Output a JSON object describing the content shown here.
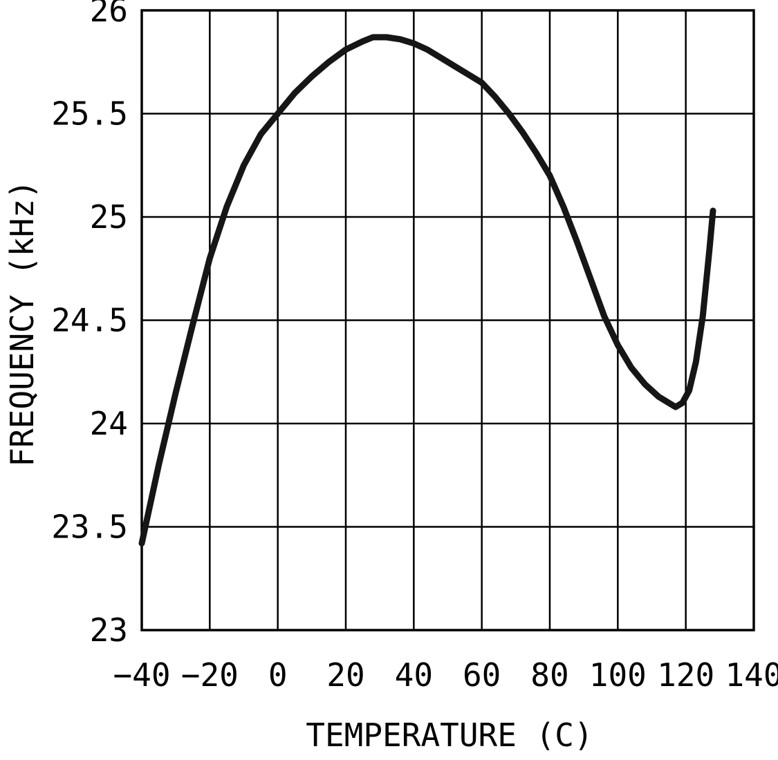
{
  "chart_data": {
    "type": "line",
    "title": "",
    "xlabel": "TEMPERATURE (C)",
    "ylabel": "FREQUENCY (kHz)",
    "xlim": [
      -40,
      140
    ],
    "ylim": [
      23,
      26
    ],
    "xticks": [
      -40,
      -20,
      0,
      20,
      40,
      60,
      80,
      100,
      120,
      140
    ],
    "xtick_labels": [
      "−40",
      "−20",
      "0",
      "20",
      "40",
      "60",
      "80",
      "100",
      "120",
      "140"
    ],
    "yticks": [
      23,
      23.5,
      24,
      24.5,
      25,
      25.5,
      26
    ],
    "ytick_labels": [
      "23",
      "23.5",
      "24",
      "24.5",
      "25",
      "25.5",
      "26"
    ],
    "grid": true,
    "legend": false,
    "line_color": "#161616",
    "series": [
      {
        "name": "frequency",
        "x": [
          -40,
          -35,
          -30,
          -25,
          -20,
          -15,
          -10,
          -5,
          0,
          5,
          10,
          15,
          20,
          25,
          28,
          32,
          36,
          40,
          44,
          48,
          52,
          56,
          60,
          64,
          68,
          72,
          76,
          80,
          84,
          88,
          92,
          96,
          100,
          104,
          108,
          112,
          115,
          117,
          119,
          121,
          123,
          125,
          127,
          128
        ],
        "y": [
          23.42,
          23.8,
          24.15,
          24.48,
          24.8,
          25.05,
          25.25,
          25.4,
          25.5,
          25.6,
          25.68,
          25.75,
          25.81,
          25.85,
          25.87,
          25.87,
          25.86,
          25.84,
          25.81,
          25.77,
          25.73,
          25.69,
          25.65,
          25.58,
          25.5,
          25.41,
          25.31,
          25.2,
          25.05,
          24.88,
          24.7,
          24.52,
          24.38,
          24.27,
          24.19,
          24.13,
          24.1,
          24.08,
          24.1,
          24.16,
          24.3,
          24.52,
          24.85,
          25.03
        ]
      }
    ]
  }
}
